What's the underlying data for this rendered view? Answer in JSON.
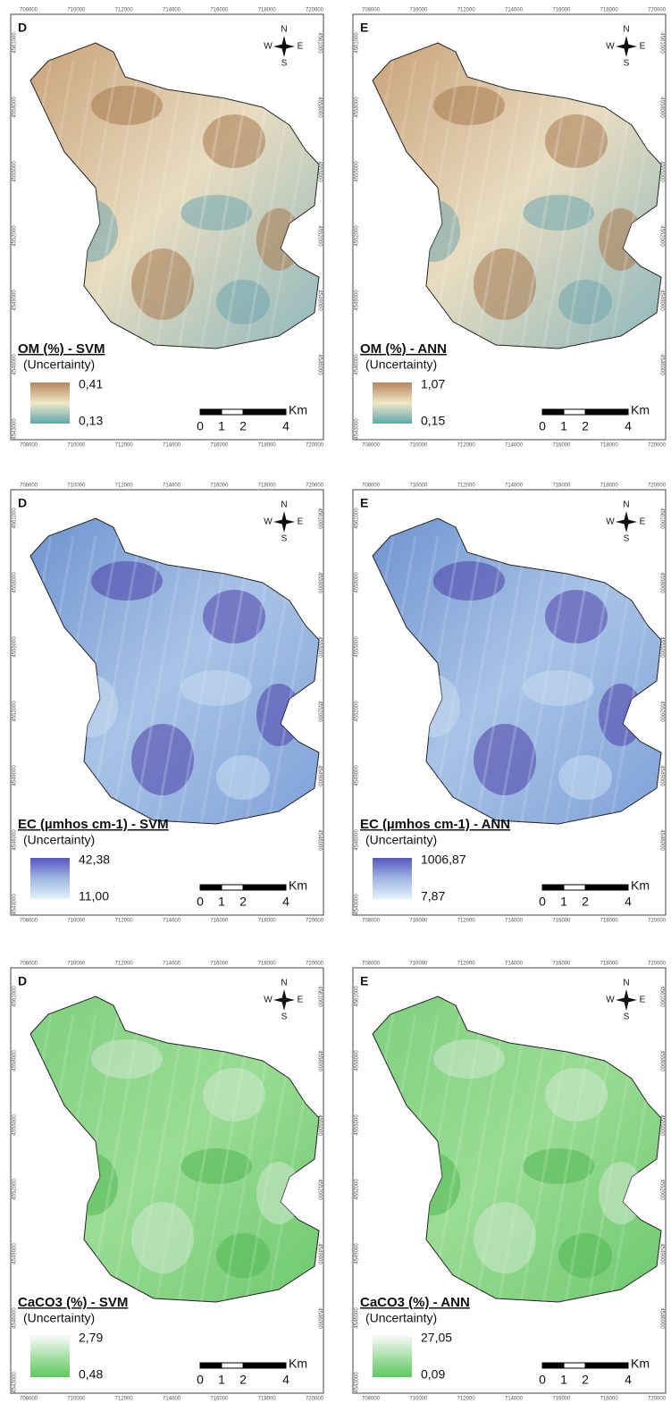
{
  "x_coords": [
    "708000",
    "710000",
    "712000",
    "714000",
    "716000",
    "718000",
    "720000"
  ],
  "y_coords": [
    "4561000",
    "4558000",
    "4555000",
    "4552000",
    "4549000",
    "4546000",
    "4543000"
  ],
  "compass": {
    "n": "N",
    "w": "W",
    "e": "E",
    "s": "S"
  },
  "scale_bar": {
    "unit": "Km",
    "labels": [
      "0",
      "1",
      "2",
      "4"
    ]
  },
  "legend_subtitle": "(Uncertainty)",
  "panels": [
    {
      "letter": "D",
      "title": "OM (%) - SVM",
      "max": "0,41",
      "min": "0,13"
    },
    {
      "letter": "E",
      "title": "OM (%) - ANN",
      "max": "1,07",
      "min": "0,15"
    },
    {
      "letter": "D",
      "title": "EC (µmhos cm-1) - SVM",
      "max": "42,38",
      "min": "11,00"
    },
    {
      "letter": "E",
      "title": "EC (µmhos cm-1) - ANN",
      "max": "1006,87",
      "min": "7,87"
    },
    {
      "letter": "D",
      "title": "CaCO3 (%) - SVM",
      "max": "2,79",
      "min": "0,48"
    },
    {
      "letter": "E",
      "title": "CaCO3 (%) - ANN",
      "max": "27,05",
      "min": "0,09"
    }
  ]
}
